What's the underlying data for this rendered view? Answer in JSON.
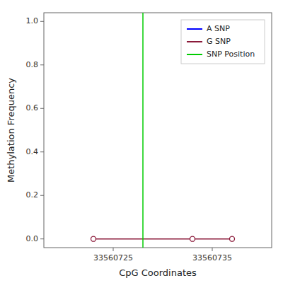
{
  "chart_data": {
    "type": "line",
    "xlabel": "CpG Coordinates",
    "ylabel": "Methylation Frequency",
    "xlim": [
      33560718,
      33560741
    ],
    "ylim": [
      -0.04,
      1.04
    ],
    "xticks": [
      33560725,
      33560735
    ],
    "yticks": [
      {
        "value": 0.0,
        "label": "0.0"
      },
      0.2,
      0.4,
      0.6,
      0.8,
      {
        "value": 1.0,
        "label": "1.0"
      }
    ],
    "grid": false,
    "legend": "upper right",
    "series": [
      {
        "name": "A SNP",
        "color": "#0000ff",
        "x": [],
        "values": []
      },
      {
        "name": "G SNP",
        "color": "#8b1a3a",
        "marker": "circle",
        "x": [
          33560723,
          33560733,
          33560737
        ],
        "values": [
          0.0,
          0.0,
          0.0
        ]
      },
      {
        "name": "SNP Position",
        "type": "vline",
        "color": "#00cc00",
        "x": [
          33560728
        ]
      }
    ]
  }
}
